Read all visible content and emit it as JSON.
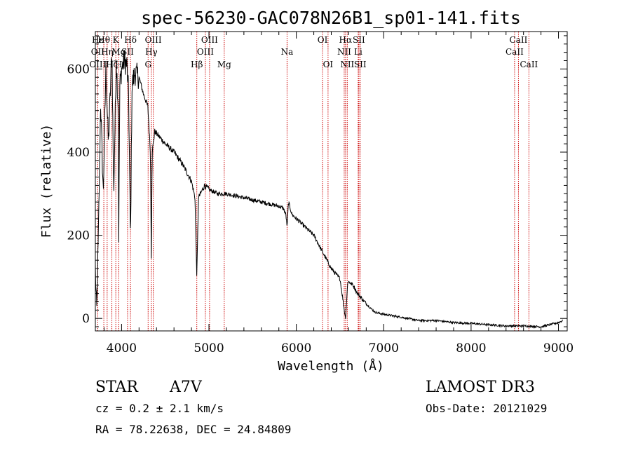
{
  "chart_data": {
    "type": "line",
    "title": "spec-56230-GAC078N26B1_sp01-141.fits",
    "xlabel": "Wavelength (Å)",
    "ylabel": "Flux (relative)",
    "xlim": [
      3700,
      9100
    ],
    "ylim": [
      -30,
      690
    ],
    "x_ticks": [
      4000,
      5000,
      6000,
      7000,
      8000,
      9000
    ],
    "x_tick_labels": [
      "4000",
      "5000",
      "6000",
      "7000",
      "8000",
      "9000"
    ],
    "y_ticks": [
      0,
      200,
      400,
      600
    ],
    "y_tick_labels": [
      "0",
      "200",
      "400",
      "600"
    ],
    "grid": false,
    "spectrum_anchor_points": [
      [
        3700,
        120
      ],
      [
        3715,
        10
      ],
      [
        3735,
        200
      ],
      [
        3760,
        520
      ],
      [
        3790,
        300
      ],
      [
        3820,
        600
      ],
      [
        3850,
        420
      ],
      [
        3890,
        650
      ],
      [
        3910,
        300
      ],
      [
        3940,
        620
      ],
      [
        3960,
        520
      ],
      [
        3968,
        200
      ],
      [
        3980,
        560
      ],
      [
        4000,
        600
      ],
      [
        4030,
        620
      ],
      [
        4060,
        610
      ],
      [
        4080,
        540
      ],
      [
        4102,
        180
      ],
      [
        4120,
        560
      ],
      [
        4150,
        590
      ],
      [
        4200,
        580
      ],
      [
        4250,
        540
      ],
      [
        4300,
        510
      ],
      [
        4330,
        400
      ],
      [
        4340,
        150
      ],
      [
        4350,
        400
      ],
      [
        4380,
        450
      ],
      [
        4420,
        440
      ],
      [
        4500,
        420
      ],
      [
        4600,
        400
      ],
      [
        4700,
        370
      ],
      [
        4800,
        330
      ],
      [
        4840,
        290
      ],
      [
        4861,
        100
      ],
      [
        4880,
        290
      ],
      [
        4950,
        320
      ],
      [
        5000,
        310
      ],
      [
        5100,
        300
      ],
      [
        5200,
        300
      ],
      [
        5300,
        295
      ],
      [
        5400,
        290
      ],
      [
        5500,
        285
      ],
      [
        5600,
        280
      ],
      [
        5700,
        275
      ],
      [
        5800,
        270
      ],
      [
        5850,
        265
      ],
      [
        5880,
        250
      ],
      [
        5895,
        220
      ],
      [
        5910,
        280
      ],
      [
        5950,
        250
      ],
      [
        6000,
        240
      ],
      [
        6100,
        220
      ],
      [
        6200,
        200
      ],
      [
        6300,
        160
      ],
      [
        6400,
        120
      ],
      [
        6500,
        95
      ],
      [
        6563,
        0
      ],
      [
        6590,
        90
      ],
      [
        6650,
        80
      ],
      [
        6700,
        60
      ],
      [
        6800,
        35
      ],
      [
        6900,
        15
      ],
      [
        7000,
        10
      ],
      [
        7200,
        3
      ],
      [
        7400,
        -5
      ],
      [
        7600,
        -5
      ],
      [
        7800,
        -10
      ],
      [
        8000,
        -12
      ],
      [
        8200,
        -15
      ],
      [
        8400,
        -18
      ],
      [
        8600,
        -18
      ],
      [
        8800,
        -20
      ],
      [
        8900,
        -15
      ],
      [
        9000,
        -10
      ],
      [
        9050,
        -5
      ]
    ],
    "emission_lines": [
      {
        "name": "Hε",
        "wavelength": 3727,
        "row": 0
      },
      {
        "name": "OII",
        "wavelength": 3727,
        "row": 1
      },
      {
        "name": "OIII",
        "wavelength": 3727,
        "row": 2
      },
      {
        "name": "Hθ",
        "wavelength": 3797,
        "row": 0
      },
      {
        "name": "Hη",
        "wavelength": 3835,
        "row": 1
      },
      {
        "name": "Hζ",
        "wavelength": 3889,
        "row": 2
      },
      {
        "name": "K",
        "wavelength": 3934,
        "row": 0
      },
      {
        "name": "H",
        "wavelength": 3968,
        "row": 2
      },
      {
        "name": "Mg",
        "wavelength": 3968,
        "row": 1
      },
      {
        "name": "SII",
        "wavelength": 4069,
        "row": 1
      },
      {
        "name": "Hδ",
        "wavelength": 4102,
        "row": 0
      },
      {
        "name": "G",
        "wavelength": 4304,
        "row": 2
      },
      {
        "name": "Hγ",
        "wavelength": 4341,
        "row": 1
      },
      {
        "name": "OIII",
        "wavelength": 4363,
        "row": 0
      },
      {
        "name": "Hβ",
        "wavelength": 4861,
        "row": 2
      },
      {
        "name": "OIII",
        "wavelength": 4959,
        "row": 1
      },
      {
        "name": "OIII",
        "wavelength": 5007,
        "row": 0
      },
      {
        "name": "Mg",
        "wavelength": 5175,
        "row": 2
      },
      {
        "name": "Na",
        "wavelength": 5894,
        "row": 1
      },
      {
        "name": "OI",
        "wavelength": 6300,
        "row": 0
      },
      {
        "name": "OI",
        "wavelength": 6363,
        "row": 2
      },
      {
        "name": "NII",
        "wavelength": 6548,
        "row": 1
      },
      {
        "name": "Hα",
        "wavelength": 6563,
        "row": 0
      },
      {
        "name": "NII",
        "wavelength": 6583,
        "row": 2
      },
      {
        "name": "SII",
        "wavelength": 6716,
        "row": 0
      },
      {
        "name": "Li",
        "wavelength": 6708,
        "row": 1
      },
      {
        "name": "SII",
        "wavelength": 6731,
        "row": 2
      },
      {
        "name": "CaII",
        "wavelength": 8498,
        "row": 1
      },
      {
        "name": "CaII",
        "wavelength": 8542,
        "row": 0
      },
      {
        "name": "CaII",
        "wavelength": 8662,
        "row": 2
      }
    ]
  },
  "info": {
    "class": "STAR",
    "subclass": "A7V",
    "survey": "LAMOST DR3",
    "cz": "cz = 0.2 ± 2.1 km/s",
    "obs_date": "Obs-Date: 20121029",
    "coords": "RA =  78.22638, DEC =  24.84809"
  },
  "colors": {
    "spectrum": "#000000",
    "line_markers": "#cc0000",
    "axes": "#000000"
  }
}
